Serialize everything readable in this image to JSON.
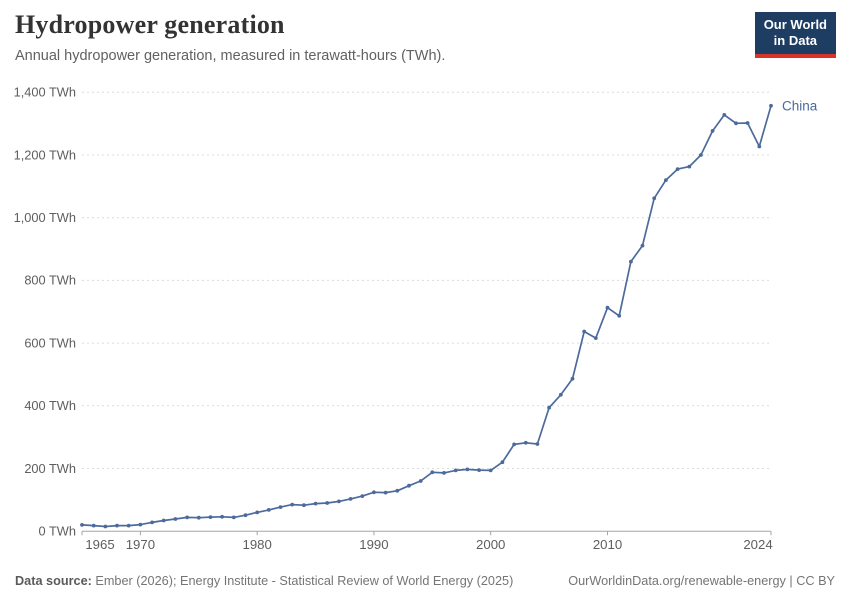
{
  "header": {
    "title": "Hydropower generation",
    "subtitle": "Annual hydropower generation, measured in terawatt-hours (TWh).",
    "logo": {
      "line1": "Our World",
      "line2": "in Data"
    }
  },
  "chart_data": {
    "type": "line",
    "title": "Hydropower generation",
    "ylabel": "TWh",
    "xlabel": "",
    "ylim": [
      0,
      1400
    ],
    "yticks": [
      0,
      200,
      400,
      600,
      800,
      1000,
      1200,
      1400
    ],
    "ytick_suffix": " TWh",
    "xticks": [
      1965,
      1970,
      1980,
      1990,
      2000,
      2010,
      2024
    ],
    "grid": "horizontal-dashed",
    "legend": "end-of-line-label",
    "x": [
      1965,
      1966,
      1967,
      1968,
      1969,
      1970,
      1971,
      1972,
      1973,
      1974,
      1975,
      1976,
      1977,
      1978,
      1979,
      1980,
      1981,
      1982,
      1983,
      1984,
      1985,
      1986,
      1987,
      1988,
      1989,
      1990,
      1991,
      1992,
      1993,
      1994,
      1995,
      1996,
      1997,
      1998,
      1999,
      2000,
      2001,
      2002,
      2003,
      2004,
      2005,
      2006,
      2007,
      2008,
      2009,
      2010,
      2011,
      2012,
      2013,
      2014,
      2015,
      2016,
      2017,
      2018,
      2019,
      2020,
      2021,
      2022,
      2023,
      2024
    ],
    "series": [
      {
        "name": "China",
        "color": "#4C6A9C",
        "values": [
          20,
          18,
          15,
          18,
          18,
          21,
          28,
          34,
          39,
          44,
          43,
          45,
          46,
          44,
          51,
          60,
          68,
          77,
          85,
          83,
          88,
          90,
          95,
          103,
          112,
          124,
          123,
          129,
          145,
          160,
          188,
          186,
          194,
          197,
          195,
          194,
          220,
          277,
          282,
          278,
          394,
          435,
          486,
          637,
          616,
          713,
          687,
          860,
          911,
          1062,
          1120,
          1155,
          1163,
          1200,
          1277,
          1328,
          1301,
          1302,
          1227,
          1357
        ]
      }
    ],
    "colors": {
      "grid": "#dcdcdc",
      "axis": "#a5a5a5",
      "tick_label": "#5e5e5e"
    }
  },
  "footer": {
    "source_label": "Data source:",
    "source_text": " Ember (2026); Energy Institute - Statistical Review of World Energy (2025)",
    "link": "OurWorldinData.org/renewable-energy | CC BY"
  }
}
